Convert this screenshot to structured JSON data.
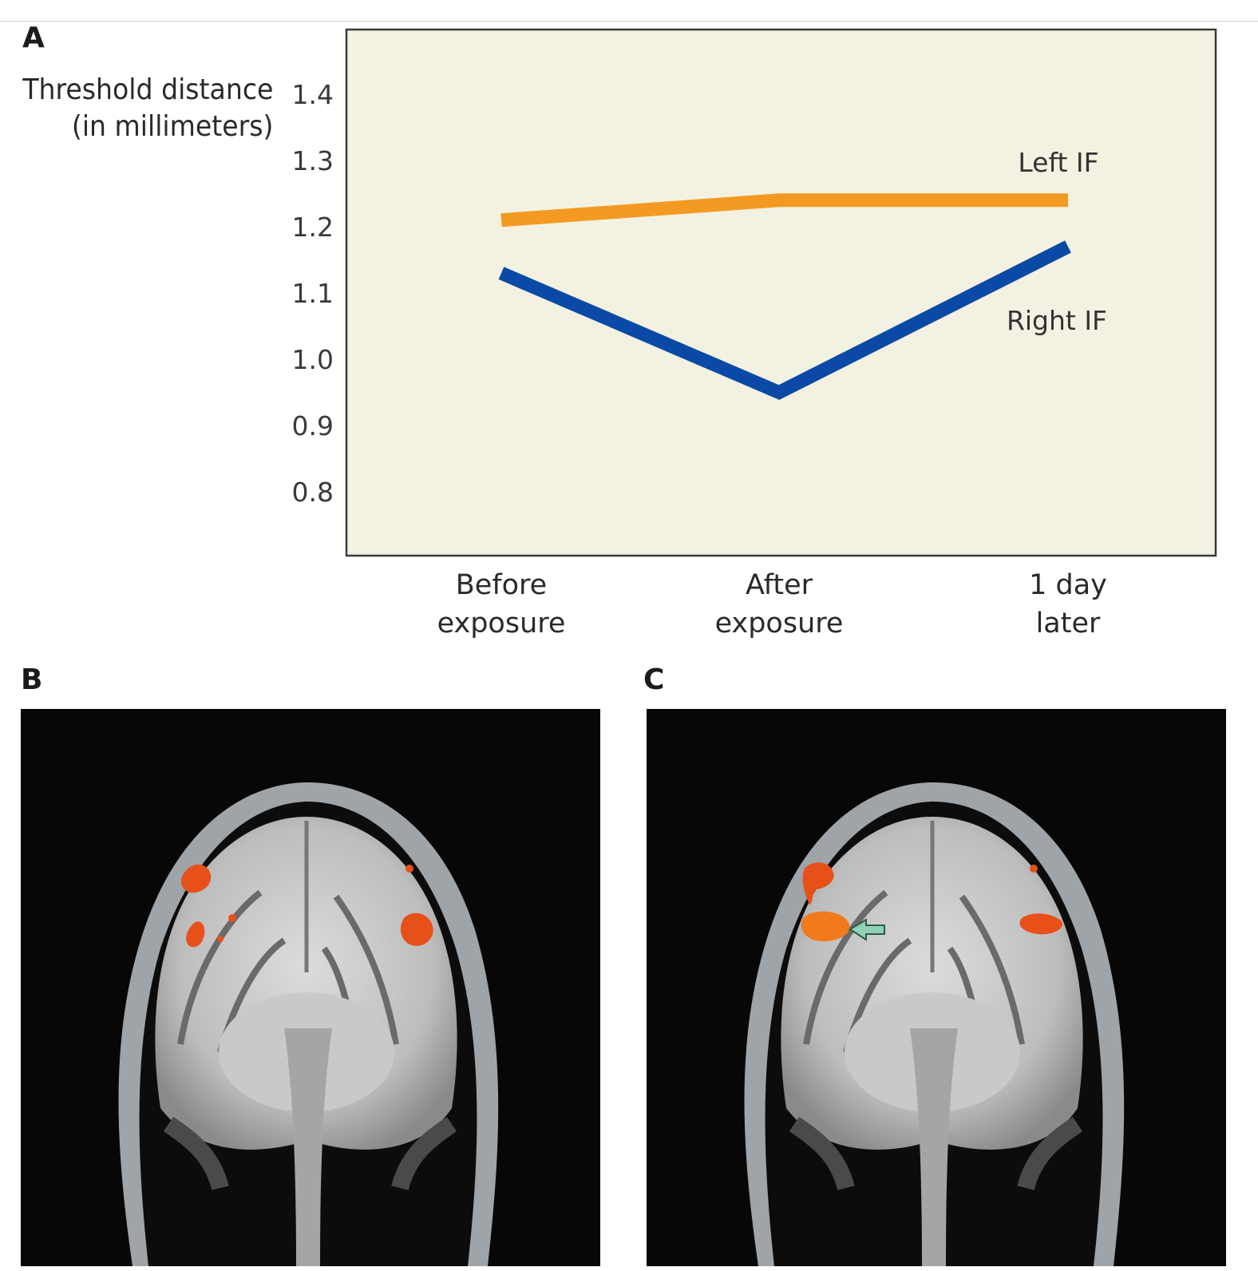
{
  "panels": {
    "a": "A",
    "b": "B",
    "c": "C"
  },
  "chart_data": {
    "type": "line",
    "ylabel_line1": "Threshold distance",
    "ylabel_line2": "(in millimeters)",
    "categories": [
      {
        "line1": "Before",
        "line2": "exposure"
      },
      {
        "line1": "After",
        "line2": "exposure"
      },
      {
        "line1": "1 day",
        "line2": "later"
      }
    ],
    "yticks": [
      "1.4",
      "1.3",
      "1.2",
      "1.1",
      "1.0",
      "0.9",
      "0.8"
    ],
    "ylim": [
      0.7,
      1.5
    ],
    "series": [
      {
        "name": "Left IF",
        "values": [
          1.21,
          1.24,
          1.24
        ],
        "color": "#f39a22"
      },
      {
        "name": "Right IF",
        "values": [
          1.13,
          0.95,
          1.17
        ],
        "color": "#0a4aa6"
      }
    ],
    "background": "#f3f1e1",
    "grid": false
  },
  "images": {
    "b": {
      "activation_color": "#e8501a"
    },
    "c": {
      "activation_color": "#e8501a",
      "arrow_color": "#8fd1b5"
    }
  }
}
